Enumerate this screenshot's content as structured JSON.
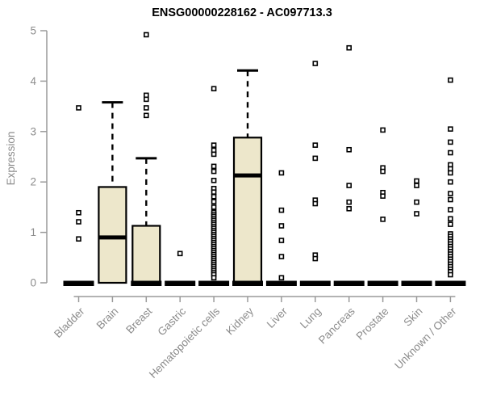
{
  "chart_data": {
    "type": "boxplot",
    "title": "ENSG00000228162 - AC097713.3",
    "ylabel": "Expression",
    "ylim": [
      0,
      5
    ],
    "yticks": [
      0,
      1,
      2,
      3,
      4,
      5
    ],
    "grid": false,
    "legend": false,
    "colors": {
      "box_fill": "#EDE7CB",
      "box_stroke": "#000000",
      "axis": "#9a9a9a",
      "tick_text": "#8c8c8c",
      "point": "#000000"
    },
    "categories": [
      "Bladder",
      "Brain",
      "Breast",
      "Gastric",
      "Hematopoietic cells",
      "Kidney",
      "Liver",
      "Lung",
      "Pancreas",
      "Prostate",
      "Skin",
      "Unknown / Other"
    ],
    "series": [
      {
        "name": "Bladder",
        "box": false,
        "zero_bar": true,
        "outliers": [
          3.47,
          1.39,
          1.21,
          0.87
        ]
      },
      {
        "name": "Brain",
        "box": true,
        "zero_bar": false,
        "q1": 0,
        "median": 0.9,
        "q3": 1.9,
        "whisker_high": 3.58,
        "outliers": []
      },
      {
        "name": "Breast",
        "box": true,
        "zero_bar": true,
        "q1": 0,
        "median": 0,
        "q3": 1.13,
        "whisker_high": 2.47,
        "outliers": [
          4.92,
          3.72,
          3.64,
          3.47,
          3.32
        ]
      },
      {
        "name": "Gastric",
        "box": false,
        "zero_bar": true,
        "outliers": [
          0.58
        ]
      },
      {
        "name": "Hematopoietic cells",
        "box": false,
        "zero_bar": true,
        "outliers": [
          3.85,
          2.73,
          2.63,
          2.55,
          2.31,
          2.21,
          2.03,
          1.87,
          1.8,
          1.71,
          1.61,
          1.5,
          1.4,
          1.36,
          1.32,
          1.28,
          1.24,
          1.2,
          1.16,
          1.12,
          1.08,
          1.04,
          1.0,
          0.96,
          0.92,
          0.88,
          0.84,
          0.8,
          0.76,
          0.72,
          0.68,
          0.64,
          0.6,
          0.56,
          0.52,
          0.48,
          0.44,
          0.4,
          0.36,
          0.32,
          0.28,
          0.24,
          0.2,
          0.16,
          0.1
        ]
      },
      {
        "name": "Kidney",
        "box": true,
        "zero_bar": true,
        "q1": 0,
        "median": 2.13,
        "q3": 2.88,
        "whisker_high": 4.21,
        "outliers": []
      },
      {
        "name": "Liver",
        "box": false,
        "zero_bar": true,
        "outliers": [
          2.18,
          1.44,
          1.13,
          0.84,
          0.52,
          0.1
        ]
      },
      {
        "name": "Lung",
        "box": false,
        "zero_bar": true,
        "outliers": [
          4.35,
          2.73,
          2.47,
          1.64,
          1.57,
          0.55,
          0.48
        ]
      },
      {
        "name": "Pancreas",
        "box": false,
        "zero_bar": true,
        "outliers": [
          4.66,
          2.64,
          1.93,
          1.6,
          1.47
        ]
      },
      {
        "name": "Prostate",
        "box": false,
        "zero_bar": true,
        "outliers": [
          3.03,
          2.28,
          2.21,
          1.79,
          1.72,
          1.26
        ]
      },
      {
        "name": "Skin",
        "box": false,
        "zero_bar": true,
        "outliers": [
          2.02,
          1.93,
          1.6,
          1.37
        ]
      },
      {
        "name": "Unknown / Other",
        "box": false,
        "zero_bar": true,
        "outliers": [
          4.02,
          3.05,
          2.79,
          2.58,
          2.34,
          2.26,
          2.18,
          2.0,
          1.77,
          1.65,
          1.45,
          1.27,
          1.16,
          0.97,
          0.92,
          0.87,
          0.82,
          0.77,
          0.72,
          0.67,
          0.62,
          0.57,
          0.52,
          0.47,
          0.42,
          0.37,
          0.32,
          0.27,
          0.22,
          0.16
        ]
      }
    ]
  }
}
